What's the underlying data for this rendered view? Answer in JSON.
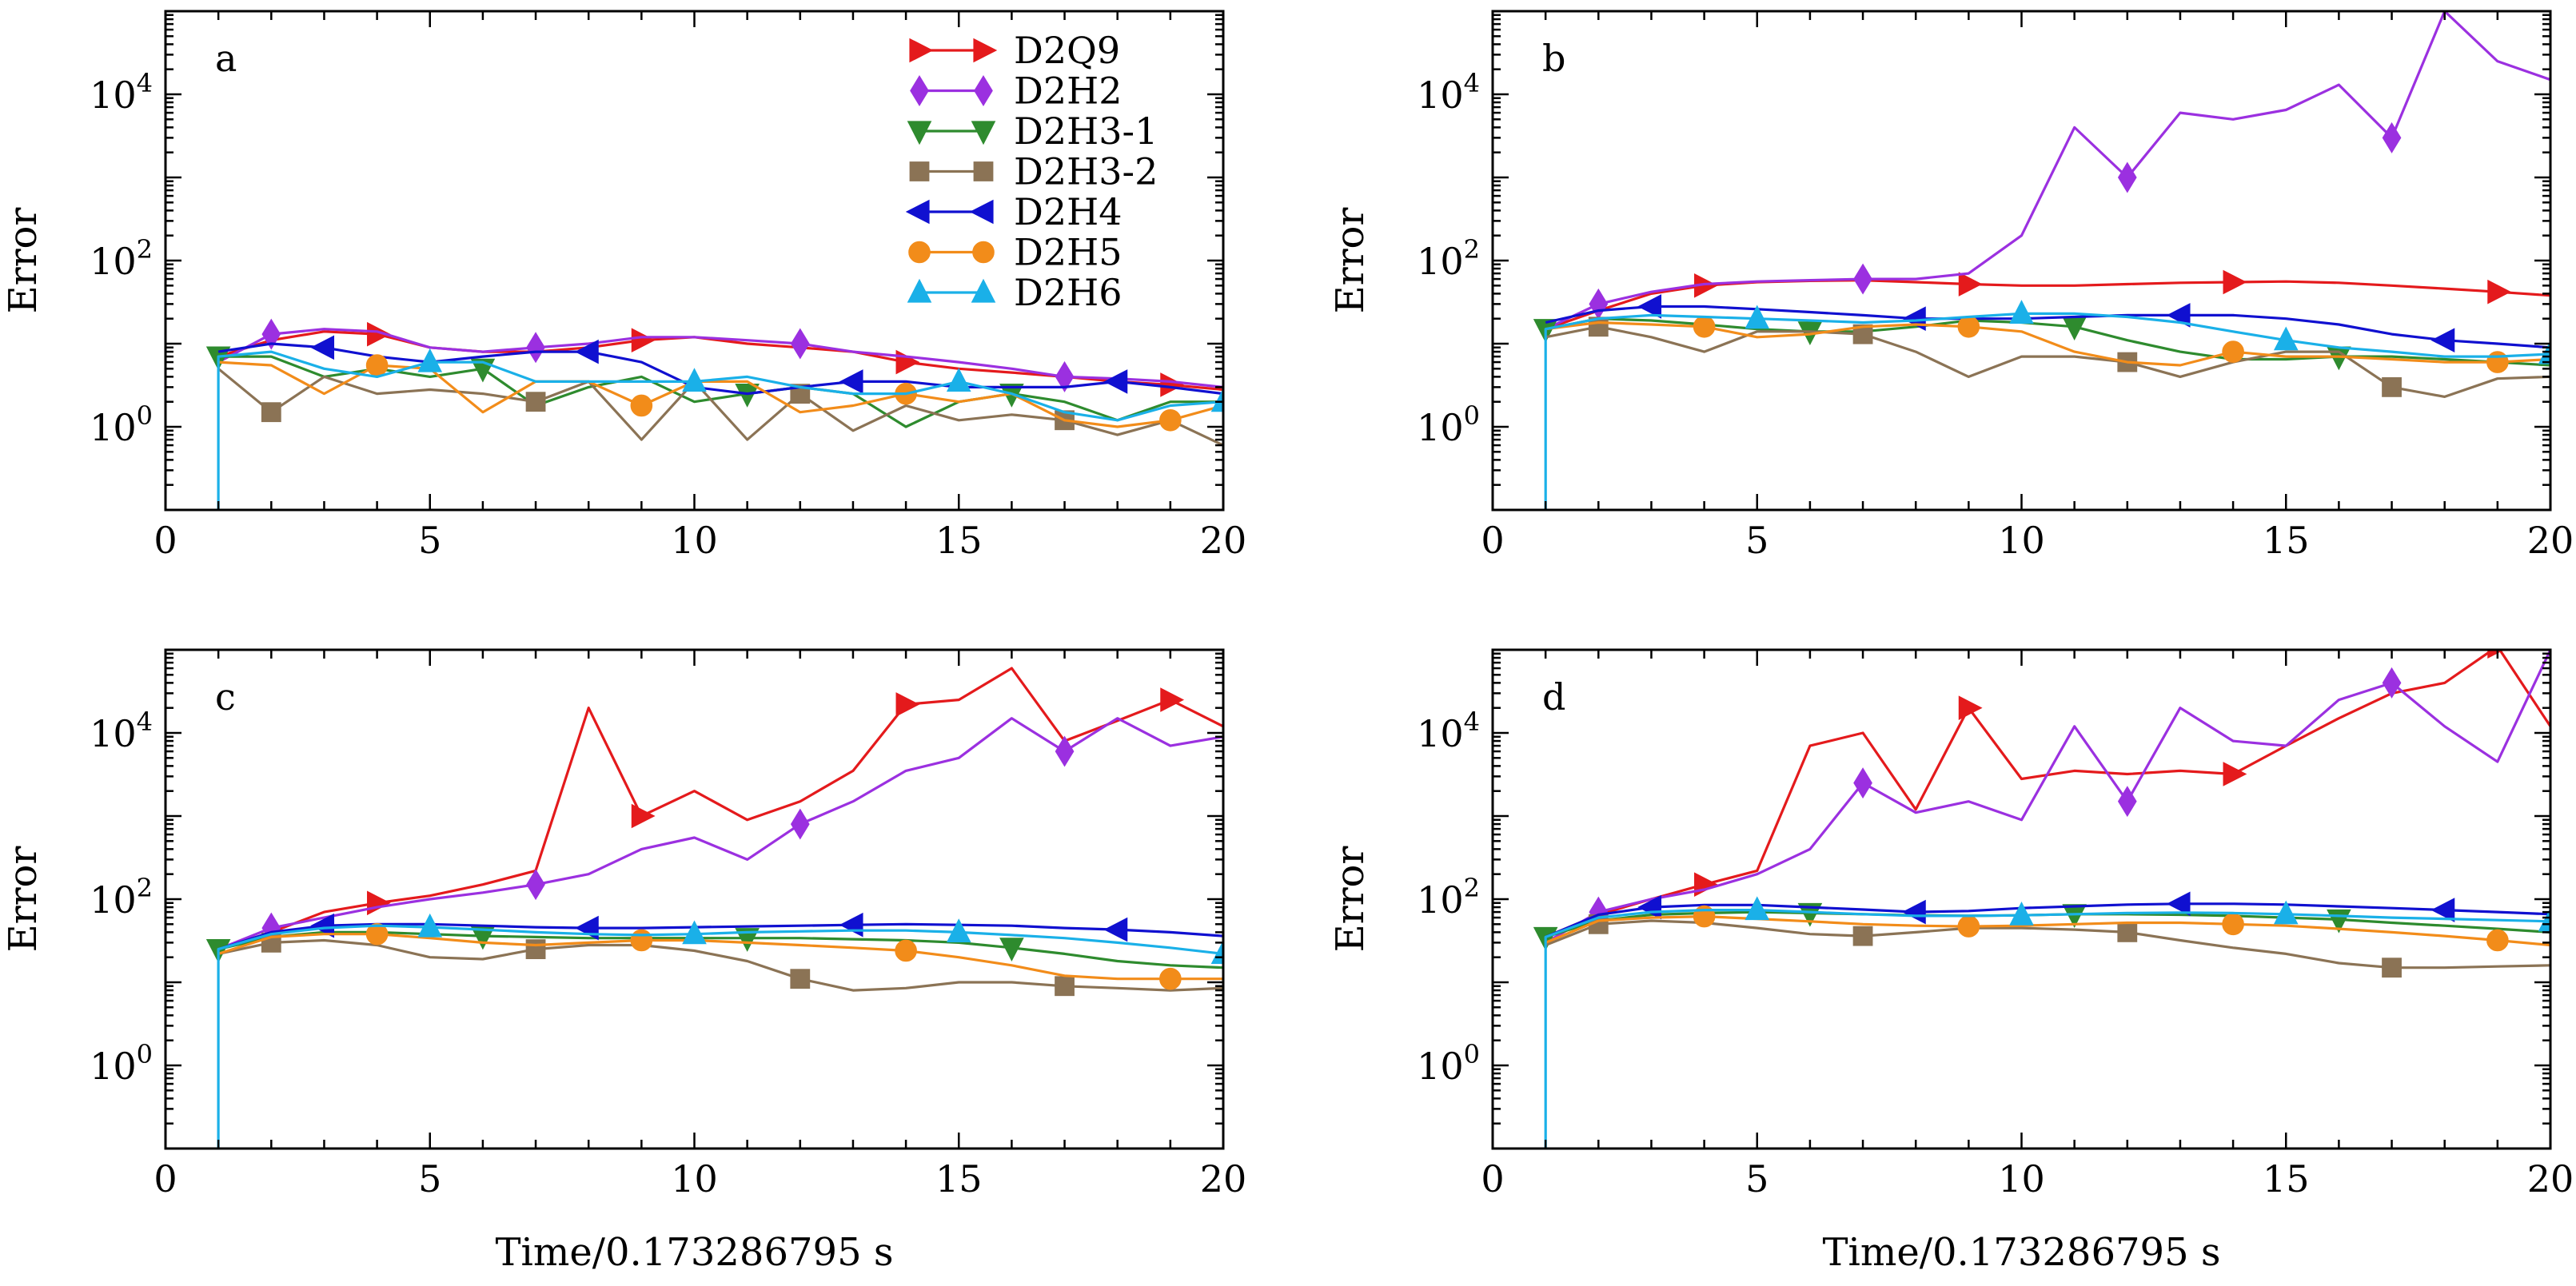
{
  "figure": {
    "xlabel": "Time/0.173286795 s",
    "ylabel": "Error"
  },
  "legend": {
    "entries": [
      {
        "name": "D2Q9",
        "color": "#e41a1c",
        "marker": "triangle-right"
      },
      {
        "name": "D2H2",
        "color": "#9b30e0",
        "marker": "diamond"
      },
      {
        "name": "D2H3-1",
        "color": "#2e8b2e",
        "marker": "triangle-down"
      },
      {
        "name": "D2H3-2",
        "color": "#8b7355",
        "marker": "square"
      },
      {
        "name": "D2H4",
        "color": "#1010d0",
        "marker": "triangle-left"
      },
      {
        "name": "D2H5",
        "color": "#f28c1a",
        "marker": "circle"
      },
      {
        "name": "D2H6",
        "color": "#1ab0e8",
        "marker": "triangle-up"
      }
    ]
  },
  "chart_data": [
    {
      "type": "line",
      "panel_label": "a",
      "xlabel": "",
      "ylabel": "Error",
      "yscale": "log",
      "xlim": [
        0,
        20
      ],
      "ylim": [
        0.1,
        100000
      ],
      "xticks": [
        "0",
        "5",
        "10",
        "15",
        "20"
      ],
      "yticks": [
        {
          "base": "10",
          "exp": "0",
          "value": 1
        },
        {
          "base": "10",
          "exp": "2",
          "value": 100
        },
        {
          "base": "10",
          "exp": "4",
          "value": 10000
        }
      ],
      "x": [
        1,
        2,
        3,
        4,
        5,
        6,
        7,
        8,
        9,
        10,
        11,
        12,
        13,
        14,
        15,
        16,
        17,
        18,
        19,
        20
      ],
      "series": [
        {
          "name": "D2Q9",
          "values": [
            7,
            11,
            14,
            13,
            9,
            8,
            8,
            9,
            11,
            12,
            10,
            9,
            8,
            6,
            5,
            4.5,
            4,
            3.5,
            3.2,
            2.8
          ],
          "markers_at": [
            4,
            9,
            14,
            19
          ]
        },
        {
          "name": "D2H2",
          "values": [
            6,
            13,
            15,
            14,
            9,
            8,
            9,
            10,
            12,
            12,
            11,
            10,
            8,
            7,
            6,
            5,
            4,
            3.8,
            3.5,
            3
          ],
          "markers_at": [
            2,
            7,
            12,
            17
          ]
        },
        {
          "name": "D2H3-1",
          "values": [
            7,
            7,
            4,
            5,
            4,
            5,
            1.8,
            3,
            4,
            2,
            2.5,
            3,
            2.5,
            1,
            2,
            2.5,
            2,
            1.2,
            2,
            2
          ],
          "markers_at": [
            1,
            6,
            11,
            16
          ]
        },
        {
          "name": "D2H3-2",
          "values": [
            5,
            1.5,
            4,
            2.5,
            2.8,
            2.5,
            2,
            3.5,
            0.7,
            3.5,
            0.7,
            2.5,
            0.9,
            1.8,
            1.2,
            1.4,
            1.2,
            0.8,
            1.2,
            0.6
          ],
          "markers_at": [
            2,
            7,
            12,
            17
          ]
        },
        {
          "name": "D2H4",
          "values": [
            8,
            10,
            9,
            7,
            6,
            7,
            8,
            8,
            6,
            3,
            2.5,
            3,
            3.5,
            3.5,
            3,
            3,
            3,
            3.5,
            3,
            2.5
          ],
          "markers_at": [
            3,
            8,
            13,
            18
          ]
        },
        {
          "name": "D2H5",
          "values": [
            6,
            5.5,
            2.5,
            5.5,
            5,
            1.5,
            3.5,
            3.5,
            1.8,
            3.5,
            3.5,
            1.5,
            1.8,
            2.5,
            2,
            2.5,
            1.2,
            1,
            1.2,
            1.8
          ],
          "markers_at": [
            4,
            9,
            14,
            19
          ]
        },
        {
          "name": "D2H6",
          "values": [
            7,
            8,
            5,
            4,
            6,
            6,
            3.5,
            3.5,
            3.5,
            3.5,
            4,
            3,
            2.5,
            2.5,
            3.5,
            2.5,
            1.5,
            1.2,
            1.8,
            2
          ],
          "markers_at": [
            5,
            10,
            15,
            20
          ]
        }
      ]
    },
    {
      "type": "line",
      "panel_label": "b",
      "xlabel": "",
      "ylabel": "Error",
      "yscale": "log",
      "xlim": [
        0,
        20
      ],
      "ylim": [
        0.1,
        100000
      ],
      "xticks": [
        "0",
        "5",
        "10",
        "15",
        "20"
      ],
      "yticks": [
        {
          "base": "10",
          "exp": "0",
          "value": 1
        },
        {
          "base": "10",
          "exp": "2",
          "value": 100
        },
        {
          "base": "10",
          "exp": "4",
          "value": 10000
        }
      ],
      "x": [
        1,
        2,
        3,
        4,
        5,
        6,
        7,
        8,
        9,
        10,
        11,
        12,
        13,
        14,
        15,
        16,
        17,
        18,
        19,
        20
      ],
      "series": [
        {
          "name": "D2Q9",
          "values": [
            15,
            25,
            40,
            50,
            55,
            57,
            58,
            55,
            52,
            50,
            50,
            52,
            54,
            55,
            56,
            54,
            50,
            46,
            42,
            38
          ],
          "markers_at": [
            4,
            9,
            14,
            19
          ]
        },
        {
          "name": "D2H2",
          "values": [
            15,
            30,
            42,
            52,
            56,
            58,
            60,
            60,
            70,
            200,
            4000,
            1000,
            6000,
            5000,
            6500,
            13000,
            3000,
            100000,
            25000,
            15000
          ],
          "markers_at": [
            2,
            7,
            12,
            17
          ]
        },
        {
          "name": "D2H3-1",
          "values": [
            15,
            20,
            19,
            17,
            15,
            14,
            14,
            16,
            19,
            18,
            16,
            11,
            8,
            6.5,
            6.5,
            7,
            7,
            6.5,
            6,
            5.5
          ],
          "markers_at": [
            1,
            6,
            11,
            16
          ]
        },
        {
          "name": "D2H3-2",
          "values": [
            12,
            16,
            12,
            8,
            14,
            14,
            13,
            8,
            4,
            7,
            7,
            6,
            4,
            6,
            8,
            8,
            3,
            2.3,
            3.8,
            4
          ],
          "markers_at": [
            2,
            7,
            12,
            17
          ]
        },
        {
          "name": "D2H4",
          "values": [
            18,
            25,
            28,
            28,
            26,
            24,
            22,
            20,
            20,
            20,
            21,
            22,
            22,
            22,
            20,
            17,
            13,
            11,
            10,
            9
          ],
          "markers_at": [
            3,
            8,
            13,
            18
          ]
        },
        {
          "name": "D2H5",
          "values": [
            15,
            18,
            17,
            16,
            12,
            13,
            16,
            17,
            16,
            14,
            8,
            6,
            5.5,
            8,
            7,
            7,
            6.5,
            6,
            6,
            6.5
          ],
          "markers_at": [
            4,
            9,
            14,
            19
          ]
        },
        {
          "name": "D2H6",
          "values": [
            15,
            20,
            22,
            21,
            20,
            19,
            18,
            19,
            21,
            23,
            23,
            21,
            18,
            14,
            11,
            9,
            8,
            7,
            7,
            7.5
          ],
          "markers_at": [
            5,
            10,
            15,
            20
          ]
        }
      ]
    },
    {
      "type": "line",
      "panel_label": "c",
      "xlabel": "Time/0.173286795 s",
      "ylabel": "Error",
      "yscale": "log",
      "xlim": [
        0,
        20
      ],
      "ylim": [
        0.1,
        100000
      ],
      "xticks": [
        "0",
        "5",
        "10",
        "15",
        "20"
      ],
      "yticks": [
        {
          "base": "10",
          "exp": "0",
          "value": 1
        },
        {
          "base": "10",
          "exp": "2",
          "value": 100
        },
        {
          "base": "10",
          "exp": "4",
          "value": 10000
        }
      ],
      "x": [
        1,
        2,
        3,
        4,
        5,
        6,
        7,
        8,
        9,
        10,
        11,
        12,
        13,
        14,
        15,
        16,
        17,
        18,
        19,
        20
      ],
      "series": [
        {
          "name": "D2Q9",
          "values": [
            25,
            40,
            70,
            90,
            110,
            150,
            220,
            20000,
            1000,
            2000,
            900,
            1500,
            3500,
            22000,
            25000,
            60000,
            8000,
            14000,
            25000,
            12000
          ],
          "markers_at": [
            4,
            9,
            14,
            19
          ]
        },
        {
          "name": "D2H2",
          "values": [
            25,
            45,
            60,
            80,
            100,
            120,
            150,
            200,
            400,
            550,
            300,
            800,
            1500,
            3500,
            5000,
            15000,
            6000,
            15000,
            7000,
            9000
          ],
          "markers_at": [
            2,
            7,
            12,
            17
          ]
        },
        {
          "name": "D2H3-1",
          "values": [
            25,
            35,
            40,
            40,
            38,
            36,
            35,
            34,
            34,
            34,
            34,
            34,
            33,
            32,
            30,
            26,
            22,
            18,
            16,
            15
          ],
          "markers_at": [
            1,
            6,
            11,
            16
          ]
        },
        {
          "name": "D2H3-2",
          "values": [
            22,
            30,
            32,
            28,
            20,
            19,
            25,
            28,
            28,
            24,
            18,
            11,
            8,
            8.5,
            10,
            10,
            9,
            8.5,
            8,
            8.5
          ],
          "markers_at": [
            2,
            7,
            12,
            17
          ]
        },
        {
          "name": "D2H4",
          "values": [
            25,
            40,
            48,
            50,
            50,
            48,
            46,
            45,
            45,
            46,
            47,
            48,
            49,
            50,
            49,
            48,
            45,
            43,
            40,
            36
          ],
          "markers_at": [
            3,
            8,
            13,
            18
          ]
        },
        {
          "name": "D2H5",
          "values": [
            22,
            35,
            38,
            38,
            34,
            30,
            28,
            30,
            32,
            32,
            30,
            28,
            26,
            24,
            20,
            16,
            12,
            11,
            11,
            11
          ],
          "markers_at": [
            4,
            9,
            14,
            19
          ]
        },
        {
          "name": "D2H6",
          "values": [
            25,
            38,
            45,
            48,
            46,
            43,
            40,
            38,
            37,
            38,
            40,
            41,
            42,
            42,
            40,
            37,
            34,
            30,
            26,
            22
          ],
          "markers_at": [
            5,
            10,
            15,
            20
          ]
        }
      ]
    },
    {
      "type": "line",
      "panel_label": "d",
      "xlabel": "Time/0.173286795 s",
      "ylabel": "Error",
      "yscale": "log",
      "xlim": [
        0,
        20
      ],
      "ylim": [
        0.1,
        100000
      ],
      "xticks": [
        "0",
        "5",
        "10",
        "15",
        "20"
      ],
      "yticks": [
        {
          "base": "10",
          "exp": "0",
          "value": 1
        },
        {
          "base": "10",
          "exp": "2",
          "value": 100
        },
        {
          "base": "10",
          "exp": "4",
          "value": 10000
        }
      ],
      "x": [
        1,
        2,
        3,
        4,
        5,
        6,
        7,
        8,
        9,
        10,
        11,
        12,
        13,
        14,
        15,
        16,
        17,
        18,
        19,
        20
      ],
      "series": [
        {
          "name": "D2Q9",
          "values": [
            35,
            65,
            100,
            150,
            220,
            7000,
            10000,
            1200,
            20000,
            2800,
            3500,
            3200,
            3500,
            3200,
            7000,
            15000,
            30000,
            40000,
            110000,
            12000
          ],
          "markers_at": [
            4,
            9,
            14,
            19
          ]
        },
        {
          "name": "D2H2",
          "values": [
            30,
            70,
            100,
            130,
            200,
            400,
            2500,
            1100,
            1500,
            900,
            12000,
            1500,
            20000,
            8000,
            7000,
            25000,
            40000,
            12000,
            4500,
            100000
          ],
          "markers_at": [
            2,
            7,
            12,
            17
          ]
        },
        {
          "name": "D2H3-1",
          "values": [
            35,
            55,
            65,
            68,
            70,
            68,
            66,
            64,
            63,
            64,
            66,
            66,
            65,
            63,
            60,
            57,
            52,
            48,
            44,
            40
          ],
          "markers_at": [
            1,
            6,
            11,
            16
          ]
        },
        {
          "name": "D2H3-2",
          "values": [
            28,
            50,
            55,
            52,
            45,
            38,
            36,
            40,
            45,
            45,
            43,
            40,
            32,
            26,
            22,
            17,
            15,
            15,
            15.5,
            16
          ],
          "markers_at": [
            2,
            7,
            12,
            17
          ]
        },
        {
          "name": "D2H4",
          "values": [
            35,
            65,
            80,
            85,
            85,
            80,
            75,
            70,
            72,
            78,
            82,
            86,
            88,
            88,
            86,
            82,
            78,
            74,
            70,
            66
          ],
          "markers_at": [
            3,
            8,
            13,
            18
          ]
        },
        {
          "name": "D2H5",
          "values": [
            30,
            55,
            60,
            62,
            58,
            54,
            50,
            48,
            47,
            48,
            50,
            52,
            52,
            50,
            48,
            44,
            40,
            36,
            32,
            28
          ],
          "markers_at": [
            4,
            9,
            14,
            19
          ]
        },
        {
          "name": "D2H6",
          "values": [
            35,
            60,
            70,
            74,
            74,
            70,
            66,
            63,
            63,
            64,
            66,
            68,
            69,
            68,
            66,
            63,
            60,
            58,
            56,
            54
          ],
          "markers_at": [
            5,
            10,
            15,
            20
          ]
        }
      ]
    }
  ]
}
